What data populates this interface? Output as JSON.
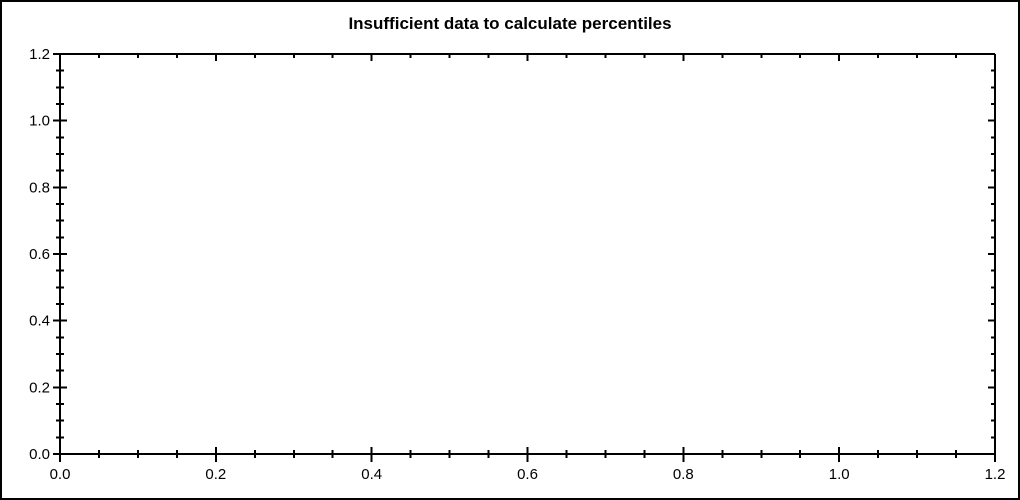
{
  "window": {
    "background_color": "#ffffff",
    "border_color": "#000000"
  },
  "chart_data": {
    "type": "line",
    "title": "Insufficient data to calculate percentiles",
    "series": [],
    "xlabel": "",
    "ylabel": "",
    "xlim": [
      0.0,
      1.2
    ],
    "ylim": [
      0.0,
      1.2
    ],
    "x_major_ticks": [
      0.0,
      0.2,
      0.4,
      0.6,
      0.8,
      1.0,
      1.2
    ],
    "x_tick_labels": [
      "0.0",
      "0.2",
      "0.4",
      "0.6",
      "0.8",
      "1.0",
      "1.2"
    ],
    "y_major_ticks": [
      0.0,
      0.2,
      0.4,
      0.6,
      0.8,
      1.0,
      1.2
    ],
    "y_tick_labels": [
      "0.0",
      "0.2",
      "0.4",
      "0.6",
      "0.8",
      "1.0",
      "1.2"
    ],
    "minor_tick_step": 0.05,
    "grid": false,
    "legend": "none",
    "frame": "full-box",
    "axis_color": "#000000",
    "text_color": "#000000"
  }
}
